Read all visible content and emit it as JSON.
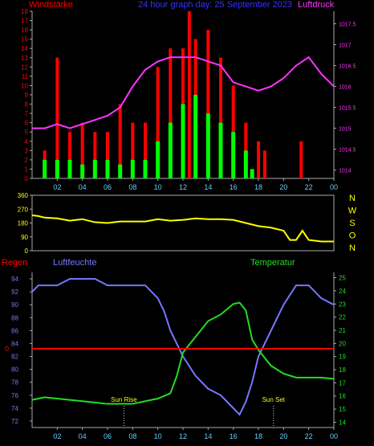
{
  "header": {
    "left_label": "Windstärke",
    "center_label": "24 hour graph day: 25 September 2023",
    "right_label": "Luftdruck"
  },
  "colors": {
    "wind_speed": "#ff0000",
    "wind_avg": "#00ff00",
    "pressure": "#ff33ff",
    "direction": "#ffff00",
    "humidity": "#7777ff",
    "temperature": "#22dd22",
    "rain": "#ff0000",
    "frame": "#aaaaaa",
    "day_ticks": "#66ccff"
  },
  "time_axis": {
    "ticks": [
      "02",
      "04",
      "06",
      "08",
      "10",
      "12",
      "14",
      "16",
      "18",
      "20",
      "22",
      "00"
    ]
  },
  "chart_data": [
    {
      "type": "bar",
      "name": "wind_pressure",
      "left_axis_label": "Windstärke",
      "right_axis_label": "Luftdruck",
      "left_ticks": [
        "0",
        "1",
        "2",
        "3",
        "4",
        "5",
        "6",
        "7",
        "8",
        "9",
        "10",
        "11",
        "12",
        "13",
        "14",
        "15",
        "16",
        "17",
        "18"
      ],
      "right_ticks": [
        "1014",
        "1014.5",
        "1015",
        "1015.5",
        "1016",
        "1016.5",
        "1017",
        "1017.5"
      ],
      "ylim_left": [
        0,
        18
      ],
      "ylim_right": [
        1013.8,
        1017.8
      ],
      "series": [
        {
          "axis": "left",
          "type": "bar",
          "color_key": "wind_speed",
          "x": [
            1.0,
            2.0,
            3.0,
            4.0,
            5.0,
            6.0,
            7.0,
            8.0,
            9.0,
            10.0,
            11.0,
            12.0,
            12.5,
            13.0,
            14.0,
            15.0,
            16.0,
            17.0,
            18.0,
            18.5,
            21.4
          ],
          "values": [
            3,
            13,
            5,
            6,
            5,
            5,
            8,
            6,
            6,
            12,
            14,
            14,
            18,
            15,
            16,
            13,
            10,
            6,
            4,
            3,
            4
          ]
        },
        {
          "axis": "left",
          "type": "bar",
          "color_key": "wind_avg",
          "x": [
            1.0,
            2.0,
            3.0,
            4.0,
            5.0,
            6.0,
            7.0,
            8.0,
            9.0,
            10.0,
            11.0,
            12.0,
            13.0,
            14.0,
            15.0,
            16.0,
            17.0,
            17.5
          ],
          "values": [
            2,
            2,
            2,
            1.5,
            2,
            2,
            1.5,
            2,
            2,
            4,
            6,
            8,
            9,
            7,
            6,
            5,
            3,
            1
          ]
        },
        {
          "axis": "right",
          "type": "line",
          "color_key": "pressure",
          "x": [
            0,
            1,
            2,
            3,
            4,
            5,
            6,
            7,
            8,
            9,
            10,
            11,
            12,
            13,
            14,
            15,
            16,
            17,
            18,
            19,
            20,
            21,
            22,
            23,
            24
          ],
          "values": [
            1015.0,
            1015.0,
            1015.1,
            1015.0,
            1015.1,
            1015.2,
            1015.3,
            1015.5,
            1016.0,
            1016.4,
            1016.6,
            1016.7,
            1016.7,
            1016.7,
            1016.6,
            1016.5,
            1016.1,
            1016.0,
            1015.9,
            1016.0,
            1016.2,
            1016.5,
            1016.7,
            1016.3,
            1016.0
          ]
        }
      ]
    },
    {
      "type": "line",
      "name": "wind_direction",
      "y_ticks": [
        "0",
        "90",
        "180",
        "270",
        "360"
      ],
      "right_labels": [
        "N",
        "W",
        "S",
        "O",
        "N"
      ],
      "ylim": [
        0,
        360
      ],
      "series": [
        {
          "color_key": "direction",
          "x": [
            0,
            0.5,
            1,
            2,
            3,
            4,
            5,
            6,
            7,
            8,
            9,
            10,
            11,
            12,
            13,
            14,
            15,
            16,
            17,
            18,
            19,
            20,
            20.5,
            21,
            21.5,
            22,
            23,
            24
          ],
          "values": [
            230,
            225,
            215,
            210,
            195,
            205,
            185,
            180,
            190,
            190,
            190,
            205,
            195,
            200,
            210,
            205,
            205,
            200,
            180,
            160,
            150,
            130,
            70,
            70,
            130,
            70,
            60,
            60
          ]
        }
      ]
    },
    {
      "type": "line",
      "name": "humidity_temperature",
      "left_axis_label": "Regen",
      "mid_axis_label": "Luftfeuchte",
      "right_axis_label": "Temperatur",
      "left_ticks": [
        "0"
      ],
      "mid_ticks": [
        "72",
        "74",
        "76",
        "78",
        "80",
        "82",
        "84",
        "86",
        "88",
        "90",
        "92",
        "94"
      ],
      "right_ticks": [
        "14",
        "15",
        "16",
        "17",
        "18",
        "19",
        "20",
        "21",
        "22",
        "23",
        "24",
        "25"
      ],
      "ylim_humidity": [
        71,
        95
      ],
      "ylim_temperature": [
        13.6,
        25.4
      ],
      "annotations": [
        "Sun Rise",
        "Sun Set"
      ],
      "sun_x": [
        7.3,
        19.2
      ],
      "series": [
        {
          "name": "Luftfeuchte",
          "color_key": "humidity",
          "x": [
            0,
            0.5,
            1,
            2,
            3,
            4,
            5,
            6,
            7,
            8,
            9,
            10,
            10.5,
            11,
            11.5,
            12,
            13,
            14,
            15,
            16,
            16.5,
            17,
            17.5,
            18,
            19,
            20,
            21,
            22,
            23,
            24
          ],
          "values": [
            92,
            93,
            93,
            93,
            94,
            94,
            94,
            93,
            93,
            93,
            93,
            91,
            89,
            86,
            84,
            82,
            79,
            77,
            76,
            74,
            73,
            75,
            78,
            82,
            86,
            90,
            93,
            93,
            91,
            90
          ]
        },
        {
          "name": "Temperatur",
          "color_key": "temperature",
          "x": [
            0,
            1,
            2,
            3,
            4,
            5,
            6,
            7,
            8,
            9,
            10,
            11,
            11.5,
            12,
            13,
            14,
            15,
            16,
            16.5,
            17,
            17.5,
            18,
            19,
            20,
            21,
            22,
            23,
            24
          ],
          "values": [
            15.7,
            15.9,
            15.8,
            15.7,
            15.6,
            15.5,
            15.4,
            15.4,
            15.4,
            15.6,
            15.8,
            16.2,
            17.5,
            19.3,
            20.5,
            21.7,
            22.2,
            23.0,
            23.1,
            22.5,
            20.3,
            19.5,
            18.3,
            17.7,
            17.4,
            17.4,
            17.4,
            17.3
          ]
        },
        {
          "name": "Regen",
          "color_key": "rain",
          "x": [
            0,
            24
          ],
          "values": [
            0,
            0
          ]
        }
      ]
    }
  ]
}
